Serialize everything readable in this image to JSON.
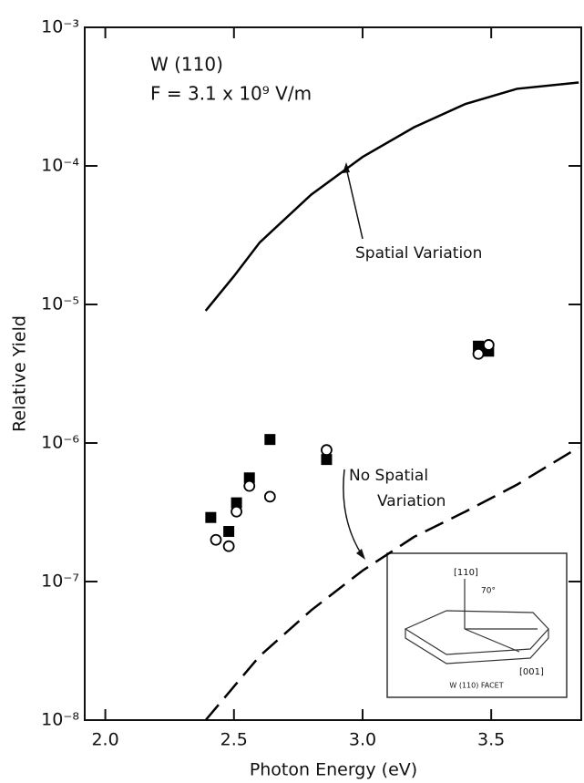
{
  "chart_data": {
    "type": "scatter",
    "x_label": "Photon Energy (eV)",
    "y_label": "Relative Yield",
    "log_y": true,
    "xlim": [
      1.92,
      3.85
    ],
    "ylim": [
      1e-08,
      0.001
    ],
    "xticks": [
      {
        "value": 2,
        "label": "2.0"
      },
      2.5,
      {
        "value": 3,
        "label": "3.0"
      },
      3.5
    ],
    "yticks": [
      {
        "value": 1e-08,
        "label": "10⁻⁸"
      },
      {
        "value": 1e-07,
        "label": "10⁻⁷"
      },
      {
        "value": 1e-06,
        "label": "10⁻⁶"
      },
      {
        "value": 1e-05,
        "label": "10⁻⁵"
      },
      {
        "value": 0.0001,
        "label": "10⁻⁴"
      },
      {
        "value": 0.001,
        "label": "10⁻³"
      }
    ],
    "annotations": [
      "W (110)",
      "F = 3.1 x 10⁹ V/m",
      "Spatial Variation",
      "No Spatial",
      "Variation"
    ],
    "series": [
      {
        "style": "line",
        "dash": false,
        "color": "#000000",
        "x": [
          2.39,
          2.5,
          2.6,
          2.8,
          3.0,
          3.2,
          3.4,
          3.6,
          3.84
        ],
        "values": [
          9e-06,
          1.6e-05,
          2.8e-05,
          6.2e-05,
          0.000116,
          0.00019,
          0.00028,
          0.00036,
          0.0004
        ]
      },
      {
        "style": "line",
        "dash": true,
        "color": "#000000",
        "x": [
          2.39,
          2.6,
          2.8,
          3.0,
          3.2,
          3.4,
          3.6,
          3.84
        ],
        "values": [
          1e-08,
          2.9e-08,
          6.2e-08,
          1.2e-07,
          2.1e-07,
          3.2e-07,
          5e-07,
          9.3e-07
        ]
      },
      {
        "style": "square",
        "color": "#000000",
        "x": [
          2.41,
          2.48,
          2.51,
          2.56,
          2.64,
          2.86,
          3.45,
          3.49
        ],
        "values": [
          2.9e-07,
          2.3e-07,
          3.7e-07,
          5.6e-07,
          1.06e-06,
          7.6e-07,
          5e-06,
          4.6e-06
        ]
      },
      {
        "style": "circle",
        "color": "#000000",
        "x": [
          2.43,
          2.48,
          2.51,
          2.56,
          2.64,
          2.86,
          3.45,
          3.49
        ],
        "values": [
          2e-07,
          1.8e-07,
          3.2e-07,
          4.9e-07,
          4.1e-07,
          8.9e-07,
          4.4e-06,
          5.1e-06
        ]
      }
    ],
    "inset": {
      "title": "W (110) FACET",
      "labels": [
        "[110]",
        "70°",
        "[001]"
      ]
    }
  }
}
